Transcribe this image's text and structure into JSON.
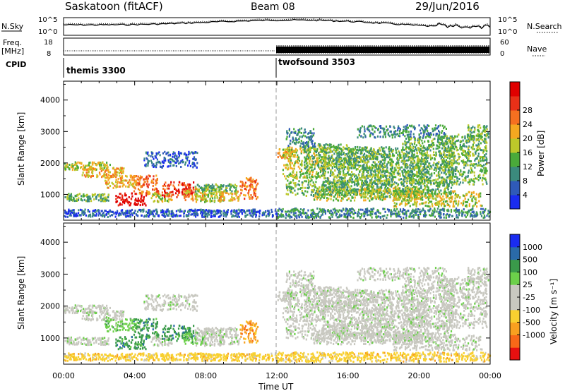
{
  "header": {
    "title": "Saskatoon (fitACF)",
    "beam": "Beam 08",
    "date": "29/Jun/2016"
  },
  "chart_data": [
    {
      "type": "line",
      "panel": "noise",
      "left_label": "N.Sky",
      "right_label": "N.Search",
      "left_ticks": [
        "10^5",
        "10^0"
      ],
      "right_ticks": [
        "10^5",
        "10^0"
      ],
      "x_range_hours": [
        0,
        24
      ]
    },
    {
      "type": "line",
      "panel": "frequency",
      "left_label_lines": [
        "Freq.",
        "[MHz]"
      ],
      "right_label": "Nave",
      "left_ticks": [
        18,
        8
      ],
      "right_ticks": [
        60,
        0
      ],
      "x_range_hours": [
        0,
        24
      ]
    },
    {
      "type": "table",
      "panel": "cpid",
      "label": "CPID",
      "modes": [
        {
          "name": "themis 3300",
          "start_hour": 0
        },
        {
          "name": "twofsound 3503",
          "start_hour": 12
        }
      ]
    },
    {
      "type": "heatmap",
      "panel": "power",
      "ylabel": "Slant Range [km]",
      "yticks": [
        1000,
        2000,
        3000,
        4000
      ],
      "ylim": [
        180,
        4600
      ],
      "colorbar": {
        "label": "Power [dB]",
        "ticks": [
          4,
          8,
          12,
          16,
          20,
          24,
          28
        ],
        "colors": [
          "#1a2cf0",
          "#2f5ab8",
          "#3b8a7d",
          "#4aaa3a",
          "#bcc82a",
          "#f5a820",
          "#f57020",
          "#e83018",
          "#e00000"
        ]
      }
    },
    {
      "type": "heatmap",
      "panel": "velocity",
      "ylabel": "Slant Range [km]",
      "yticks": [
        1000,
        2000,
        3000,
        4000
      ],
      "ylim": [
        180,
        4600
      ],
      "colorbar": {
        "label": "Velocity [m s⁻¹]",
        "ticks": [
          "1000",
          "500",
          "100",
          "25",
          "-25",
          "-100",
          "-500",
          "-1000"
        ],
        "colors": [
          "#1a2cf0",
          "#2a6aa8",
          "#3a9a4a",
          "#6cd04a",
          "#c8c8c0",
          "#c8c8c0",
          "#f8d030",
          "#f8a020",
          "#f86818",
          "#e81010"
        ]
      }
    }
  ],
  "xaxis": {
    "ticks": [
      "00:00",
      "04:00",
      "08:00",
      "12:00",
      "16:00",
      "20:00",
      "00:00"
    ],
    "label": "Time UT"
  }
}
